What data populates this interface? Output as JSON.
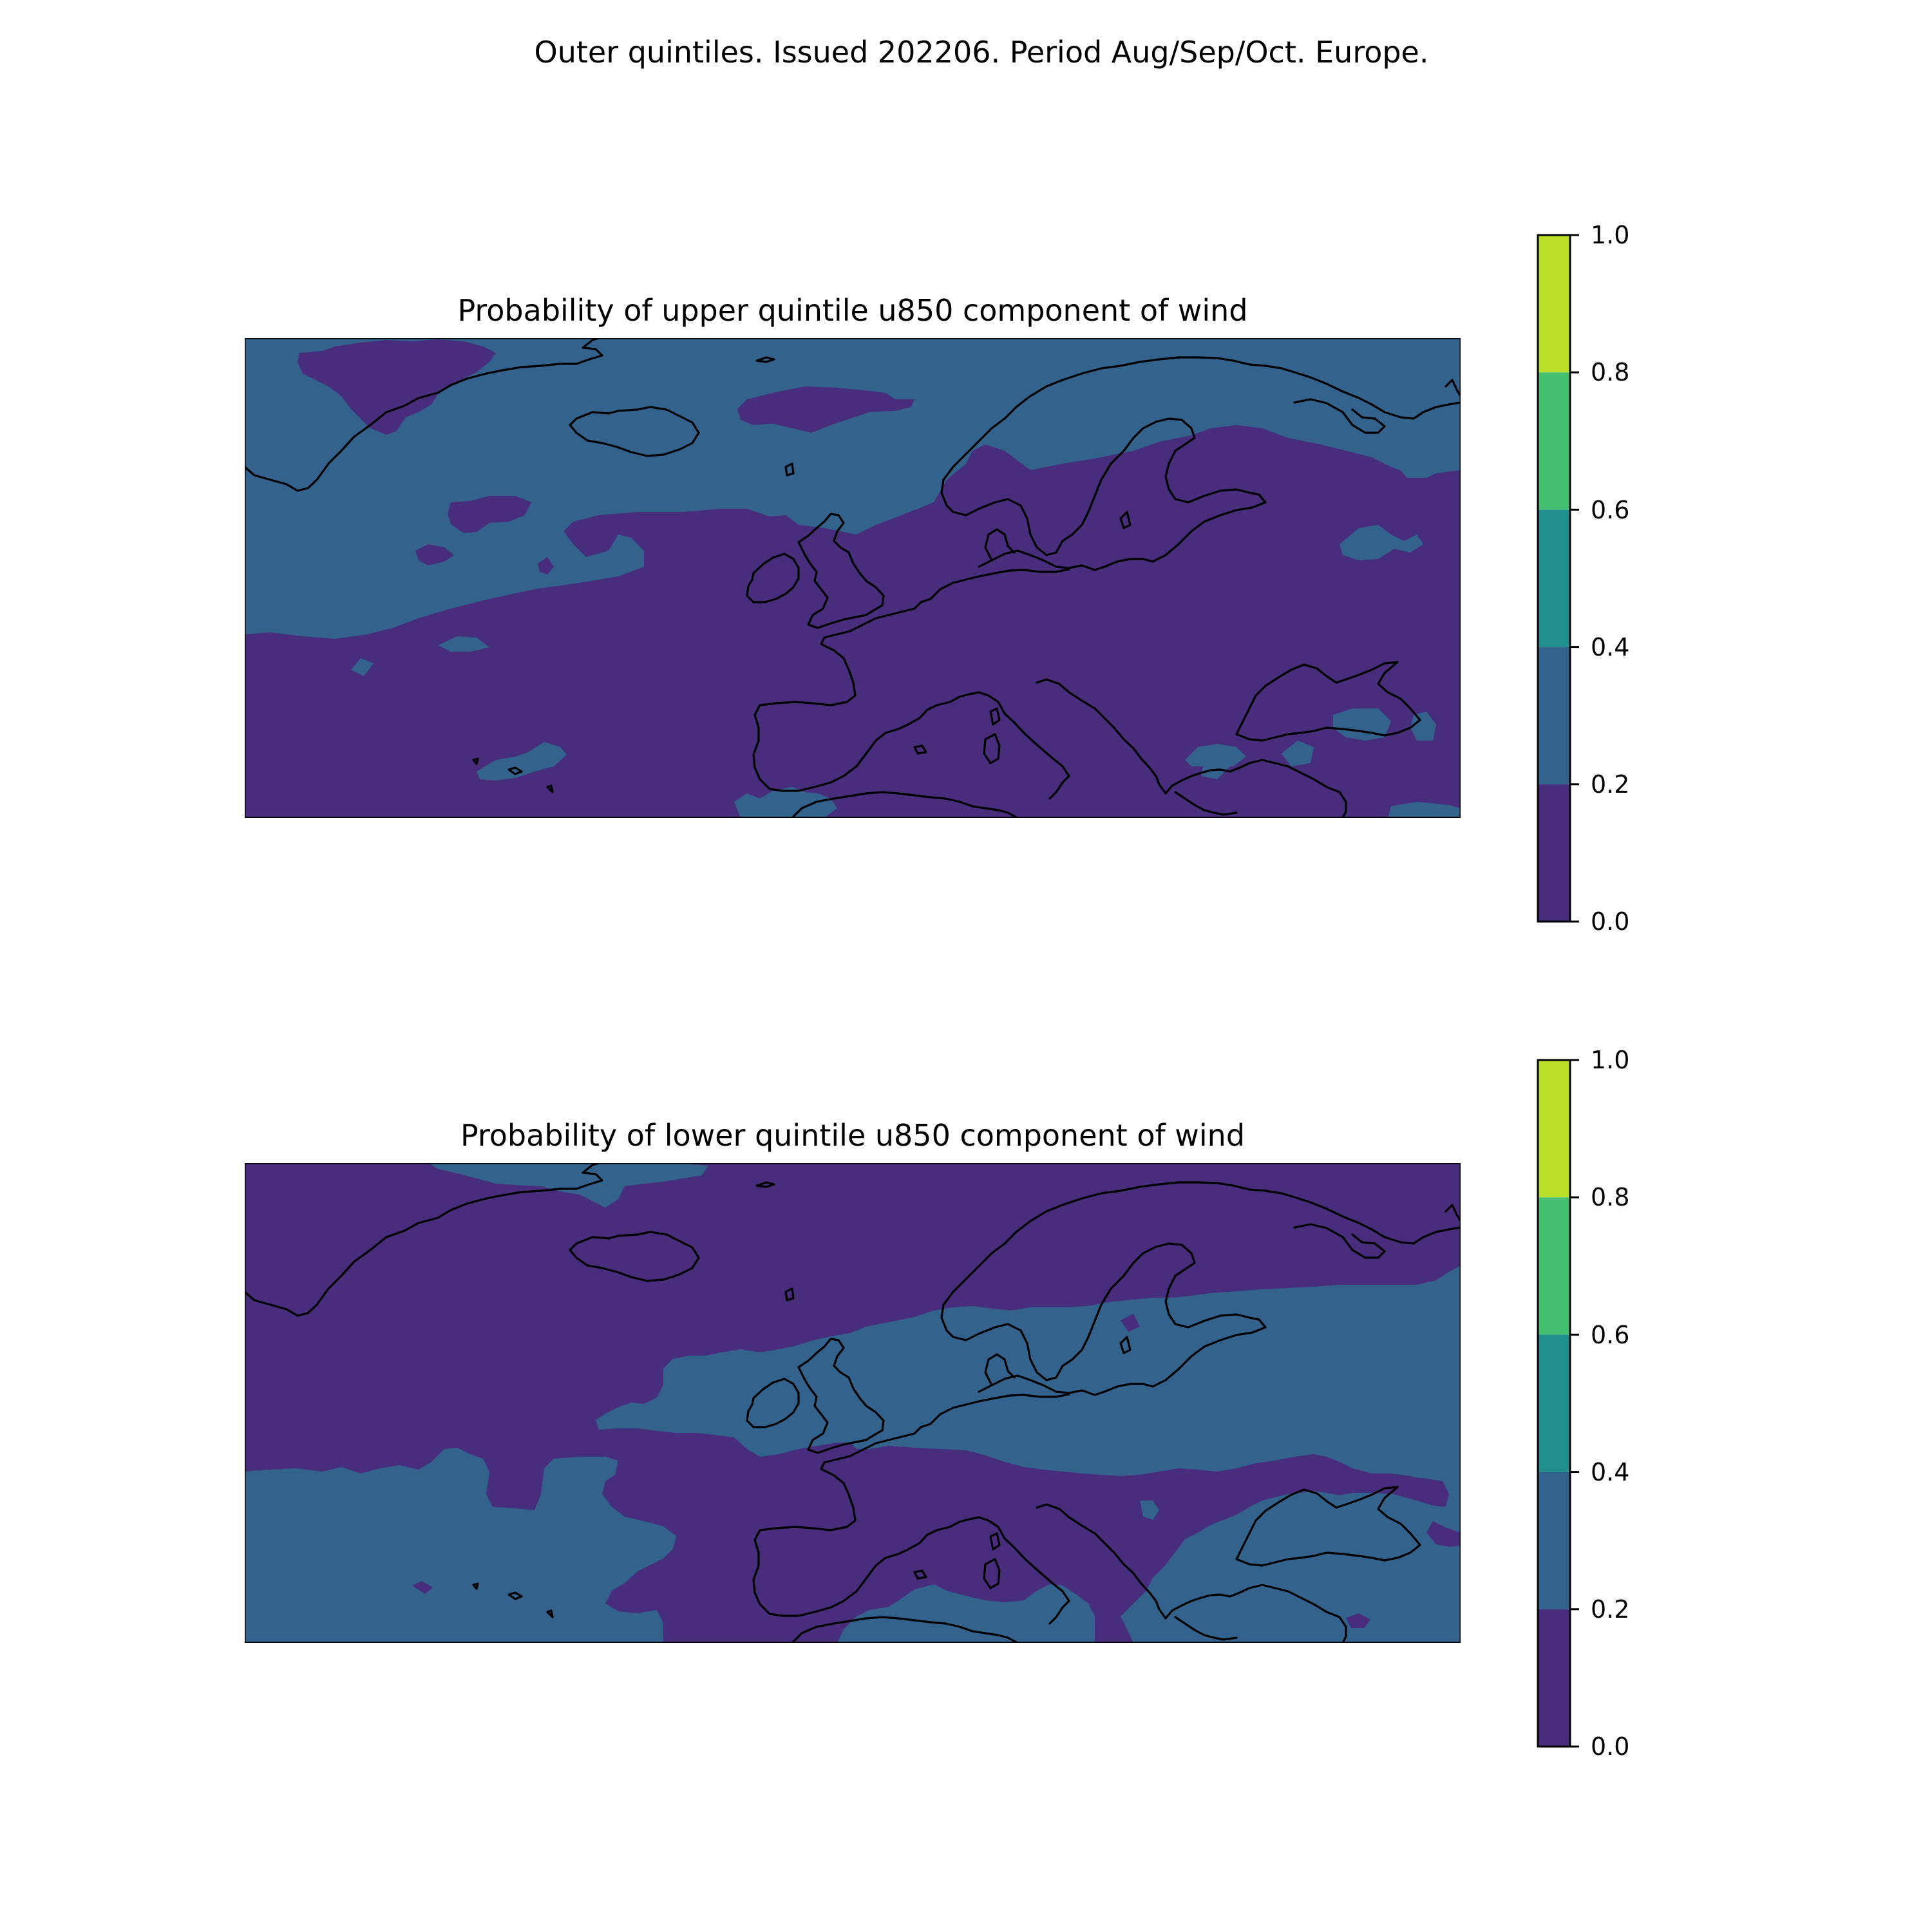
{
  "figure": {
    "title": "Outer quintiles. Issued 202206. Period Aug/Sep/Oct. Europe."
  },
  "colors": {
    "level_0_0.2": "#472d7b",
    "level_0.2_0.4": "#33628d",
    "level_0.4_0.6": "#21908d",
    "level_0.6_0.8": "#44bf70",
    "level_0.8_1.0": "#bbdf27",
    "coastline": "#000000"
  },
  "chart_data": [
    {
      "type": "heatmap",
      "title": "Probability of upper quintile u850 component of wind",
      "region": "Europe",
      "dominant_class": "0.0-0.2",
      "secondary_class": "0.2-0.4",
      "colorbar": {
        "boundaries": [
          0.0,
          0.2,
          0.4,
          0.6,
          0.8,
          1.0
        ],
        "tick_labels": [
          "0.0",
          "0.2",
          "0.4",
          "0.6",
          "0.8",
          "1.0"
        ],
        "colors": [
          "#472d7b",
          "#33628d",
          "#21908d",
          "#44bf70",
          "#bbdf27"
        ]
      }
    },
    {
      "type": "heatmap",
      "title": "Probability of lower quintile u850 component of wind",
      "region": "Europe",
      "dominant_class": "0.0-0.2",
      "secondary_class": "0.2-0.4",
      "colorbar": {
        "boundaries": [
          0.0,
          0.2,
          0.4,
          0.6,
          0.8,
          1.0
        ],
        "tick_labels": [
          "0.0",
          "0.2",
          "0.4",
          "0.6",
          "0.8",
          "1.0"
        ],
        "colors": [
          "#472d7b",
          "#33628d",
          "#21908d",
          "#44bf70",
          "#bbdf27"
        ]
      }
    }
  ]
}
